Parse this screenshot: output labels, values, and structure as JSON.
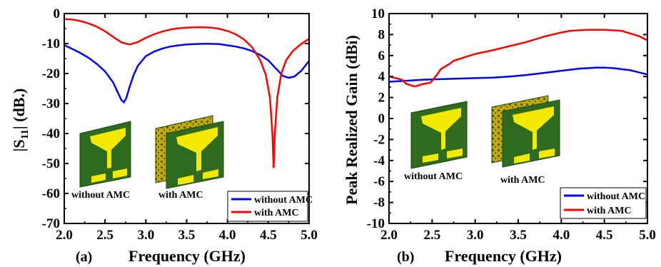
{
  "chart_data": [
    {
      "type": "line",
      "panel_label": "(a)",
      "xlabel": "Frequency (GHz)",
      "ylabel_main": "|S",
      "ylabel_sub": "11",
      "ylabel_rest": "| (dB.)",
      "xlim": [
        2.0,
        5.0
      ],
      "ylim": [
        -70,
        0
      ],
      "xticks": [
        "2.0",
        "2.5",
        "3.0",
        "3.5",
        "4.0",
        "4.5",
        "5.0"
      ],
      "yticks": [
        "-70",
        "-60",
        "-50",
        "-40",
        "-30",
        "-20",
        "-10",
        "0"
      ],
      "grid": false,
      "legend_position": "bottom-right",
      "series": [
        {
          "name": "without AMC",
          "color": "#0000ff",
          "points": [
            [
              2.0,
              -10.5
            ],
            [
              2.1,
              -11.8
            ],
            [
              2.2,
              -13.2
            ],
            [
              2.3,
              -14.8
            ],
            [
              2.4,
              -16.8
            ],
            [
              2.5,
              -19.3
            ],
            [
              2.6,
              -23.0
            ],
            [
              2.65,
              -26.0
            ],
            [
              2.7,
              -28.8
            ],
            [
              2.73,
              -29.6
            ],
            [
              2.76,
              -28.2
            ],
            [
              2.8,
              -24.5
            ],
            [
              2.85,
              -20.5
            ],
            [
              2.9,
              -17.5
            ],
            [
              3.0,
              -14.2
            ],
            [
              3.1,
              -12.7
            ],
            [
              3.2,
              -11.7
            ],
            [
              3.3,
              -11.0
            ],
            [
              3.4,
              -10.6
            ],
            [
              3.5,
              -10.3
            ],
            [
              3.6,
              -10.2
            ],
            [
              3.7,
              -10.1
            ],
            [
              3.8,
              -10.1
            ],
            [
              3.9,
              -10.2
            ],
            [
              4.0,
              -10.6
            ],
            [
              4.1,
              -11.0
            ],
            [
              4.2,
              -11.6
            ],
            [
              4.3,
              -12.5
            ],
            [
              4.4,
              -13.8
            ],
            [
              4.5,
              -15.6
            ],
            [
              4.6,
              -18.5
            ],
            [
              4.68,
              -20.8
            ],
            [
              4.75,
              -21.4
            ],
            [
              4.82,
              -21.0
            ],
            [
              4.9,
              -19.2
            ],
            [
              5.0,
              -15.8
            ]
          ]
        },
        {
          "name": "with AMC",
          "color": "#ff0000",
          "points": [
            [
              2.0,
              -1.8
            ],
            [
              2.1,
              -2.0
            ],
            [
              2.2,
              -2.5
            ],
            [
              2.3,
              -3.3
            ],
            [
              2.4,
              -4.4
            ],
            [
              2.5,
              -5.9
            ],
            [
              2.6,
              -7.8
            ],
            [
              2.7,
              -9.6
            ],
            [
              2.8,
              -10.3
            ],
            [
              2.9,
              -9.5
            ],
            [
              3.0,
              -8.1
            ],
            [
              3.1,
              -6.9
            ],
            [
              3.2,
              -6.0
            ],
            [
              3.3,
              -5.3
            ],
            [
              3.4,
              -4.9
            ],
            [
              3.5,
              -4.7
            ],
            [
              3.6,
              -4.6
            ],
            [
              3.7,
              -4.6
            ],
            [
              3.8,
              -4.7
            ],
            [
              3.9,
              -5.1
            ],
            [
              4.0,
              -5.8
            ],
            [
              4.1,
              -6.9
            ],
            [
              4.2,
              -8.6
            ],
            [
              4.3,
              -11.2
            ],
            [
              4.4,
              -15.5
            ],
            [
              4.47,
              -20.5
            ],
            [
              4.52,
              -28.0
            ],
            [
              4.55,
              -40.0
            ],
            [
              4.565,
              -51.5
            ],
            [
              4.58,
              -40.0
            ],
            [
              4.61,
              -28.0
            ],
            [
              4.66,
              -20.0
            ],
            [
              4.72,
              -15.5
            ],
            [
              4.8,
              -12.5
            ],
            [
              4.9,
              -10.2
            ],
            [
              5.0,
              -8.4
            ]
          ]
        }
      ],
      "inset_labels": [
        "without AMC",
        "with AMC"
      ]
    },
    {
      "type": "line",
      "panel_label": "(b)",
      "xlabel": "Frequency (GHz)",
      "ylabel": "Peak Realized Gain (dBi)",
      "xlim": [
        2.0,
        5.0
      ],
      "ylim": [
        -10,
        10
      ],
      "xticks": [
        "2.0",
        "2.5",
        "3.0",
        "3.5",
        "4.0",
        "4.5",
        "5.0"
      ],
      "yticks": [
        "-10",
        "-8",
        "-6",
        "-4",
        "-2",
        "0",
        "2",
        "4",
        "6",
        "8",
        "10"
      ],
      "grid": false,
      "legend_position": "bottom-right",
      "series": [
        {
          "name": "without AMC",
          "color": "#0000ff",
          "points": [
            [
              2.0,
              3.5
            ],
            [
              2.2,
              3.6
            ],
            [
              2.4,
              3.7
            ],
            [
              2.6,
              3.75
            ],
            [
              2.8,
              3.8
            ],
            [
              3.0,
              3.85
            ],
            [
              3.2,
              3.9
            ],
            [
              3.4,
              4.0
            ],
            [
              3.6,
              4.15
            ],
            [
              3.8,
              4.35
            ],
            [
              4.0,
              4.55
            ],
            [
              4.2,
              4.75
            ],
            [
              4.4,
              4.85
            ],
            [
              4.5,
              4.85
            ],
            [
              4.6,
              4.8
            ],
            [
              4.8,
              4.6
            ],
            [
              5.0,
              4.2
            ]
          ]
        },
        {
          "name": "with AMC",
          "color": "#ff0000",
          "points": [
            [
              2.0,
              4.0
            ],
            [
              2.1,
              3.8
            ],
            [
              2.15,
              3.7
            ],
            [
              2.2,
              3.3
            ],
            [
              2.3,
              3.05
            ],
            [
              2.4,
              3.3
            ],
            [
              2.48,
              3.4
            ],
            [
              2.55,
              4.1
            ],
            [
              2.6,
              4.7
            ],
            [
              2.7,
              5.2
            ],
            [
              2.75,
              5.5
            ],
            [
              2.9,
              5.9
            ],
            [
              3.0,
              6.15
            ],
            [
              3.2,
              6.5
            ],
            [
              3.4,
              6.9
            ],
            [
              3.6,
              7.3
            ],
            [
              3.8,
              7.8
            ],
            [
              4.0,
              8.2
            ],
            [
              4.1,
              8.35
            ],
            [
              4.3,
              8.45
            ],
            [
              4.5,
              8.45
            ],
            [
              4.7,
              8.35
            ],
            [
              4.8,
              8.1
            ],
            [
              4.9,
              7.85
            ],
            [
              5.0,
              7.45
            ]
          ]
        }
      ],
      "inset_labels": [
        "without AMC",
        "with AMC"
      ]
    }
  ]
}
